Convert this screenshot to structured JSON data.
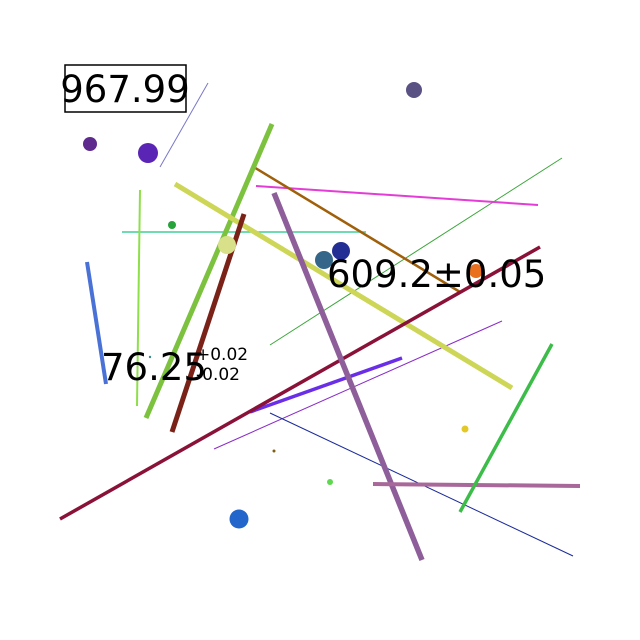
{
  "labels": {
    "boxed_value": "967.99",
    "center_value": "609.2±0.05",
    "left_value": {
      "main": "76.25",
      "upper": "+0.02",
      "lower": "-0.02"
    }
  },
  "colors": {
    "background": "#ffffff",
    "text": "#000000"
  }
}
